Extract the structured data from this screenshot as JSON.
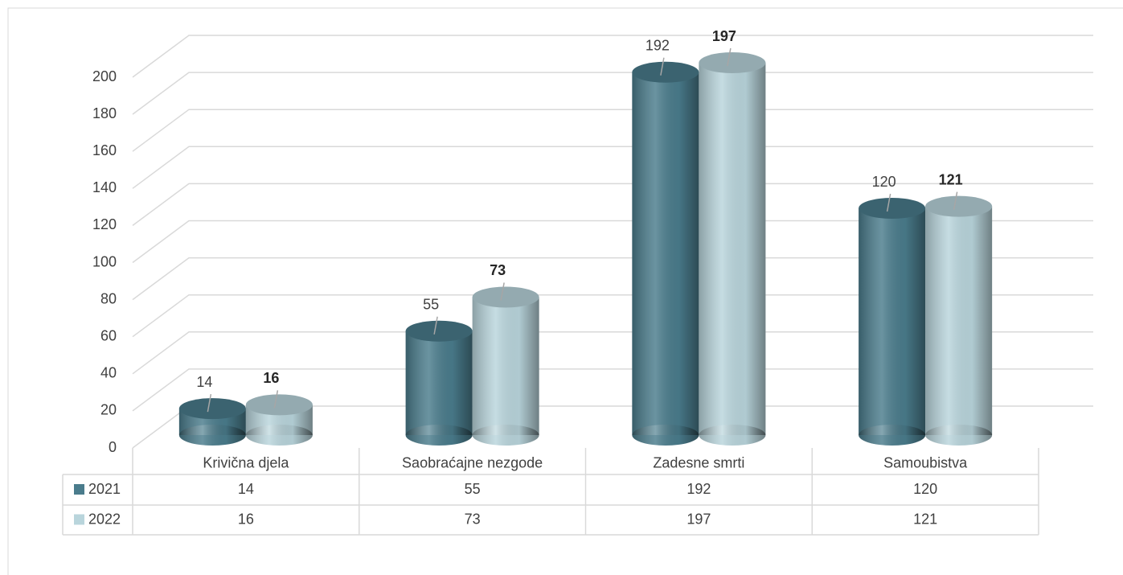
{
  "chart_data": {
    "type": "bar3d",
    "categories": [
      "Krivična djela",
      "Saobraćajne nezgode",
      "Zadesne smrti",
      "Samoubistva"
    ],
    "series": [
      {
        "name": "2021",
        "color": "#4a7c8c",
        "values": [
          14,
          55,
          192,
          120
        ]
      },
      {
        "name": "2022",
        "color": "#b9d5dc",
        "values": [
          16,
          73,
          197,
          121
        ]
      }
    ],
    "ylim": [
      0,
      200
    ],
    "yticks": [
      0,
      20,
      40,
      60,
      80,
      100,
      120,
      140,
      160,
      180,
      200
    ],
    "grid": true,
    "data_table": true
  }
}
